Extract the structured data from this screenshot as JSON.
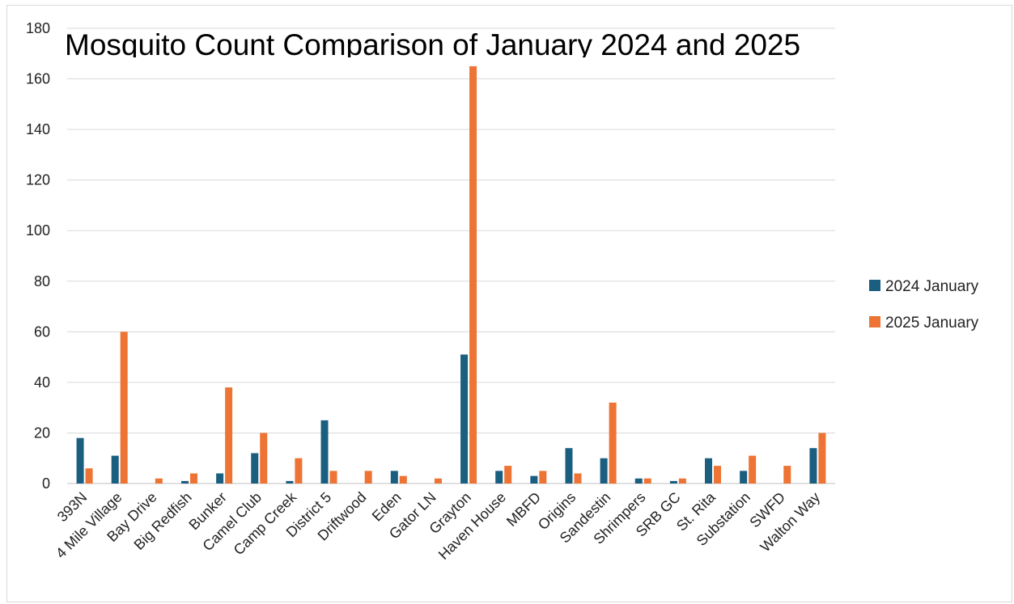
{
  "chart_data": {
    "type": "bar",
    "title": "Mosquito Count Comparison of January 2024 and 2025",
    "xlabel": "",
    "ylabel": "",
    "ylim": [
      0,
      180
    ],
    "yticks": [
      0,
      20,
      40,
      60,
      80,
      100,
      120,
      140,
      160,
      180
    ],
    "grid": true,
    "legend_position": "right",
    "categories": [
      "393N",
      "4 Mile Village",
      "Bay Drive",
      "Big Redfish",
      "Bunker",
      "Camel Club",
      "Camp Creek",
      "District 5",
      "Driftwood",
      "Eden",
      "Gator LN",
      "Grayton",
      "Haven House",
      "MBFD",
      "Origins",
      "Sandestin",
      "Shrimpers",
      "SRB GC",
      "St. Rita",
      "Substation",
      "SWFD",
      "Walton Way"
    ],
    "series": [
      {
        "name": "2024 January",
        "color": "#1a5e80",
        "values": [
          18,
          11,
          0,
          1,
          4,
          12,
          1,
          25,
          0,
          5,
          0,
          51,
          5,
          3,
          14,
          10,
          2,
          1,
          10,
          5,
          0,
          14
        ]
      },
      {
        "name": "2025 January",
        "color": "#ed7434",
        "values": [
          6,
          60,
          2,
          4,
          38,
          20,
          10,
          5,
          5,
          3,
          2,
          165,
          7,
          5,
          4,
          32,
          2,
          2,
          7,
          11,
          7,
          20
        ]
      }
    ]
  }
}
